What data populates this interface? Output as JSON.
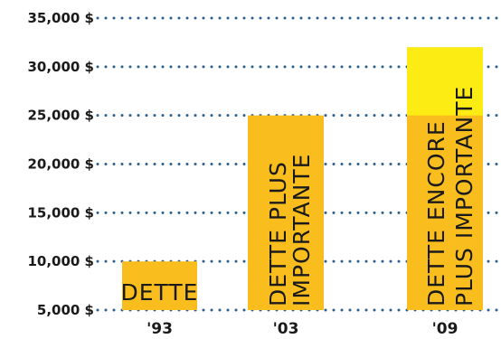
{
  "chart_data": {
    "type": "bar",
    "title": "",
    "xlabel": "",
    "ylabel": "",
    "ylim": [
      5000,
      35000
    ],
    "yticks": [
      "35,000 $",
      "30,000 $",
      "25,000 $",
      "20,000 $",
      "15,000 $",
      "10,000 $",
      "5,000 $"
    ],
    "grid": "dotted horizontal",
    "categories": [
      "'93",
      "'03",
      "'09"
    ],
    "values": [
      10000,
      25000,
      32000
    ],
    "bar_labels": [
      [
        "DETTE"
      ],
      [
        "DETTE PLUS",
        "IMPORTANTE"
      ],
      [
        "DETTE ENCORE",
        "PLUS IMPORTANTE"
      ]
    ],
    "highlight": {
      "bar_index": 2,
      "from": 25000,
      "to": 32000
    },
    "colors": {
      "bar": "#f9bd1e",
      "highlight": "#fcec14",
      "grid": "#2a5f8f",
      "text": "#1a1a1a"
    }
  }
}
